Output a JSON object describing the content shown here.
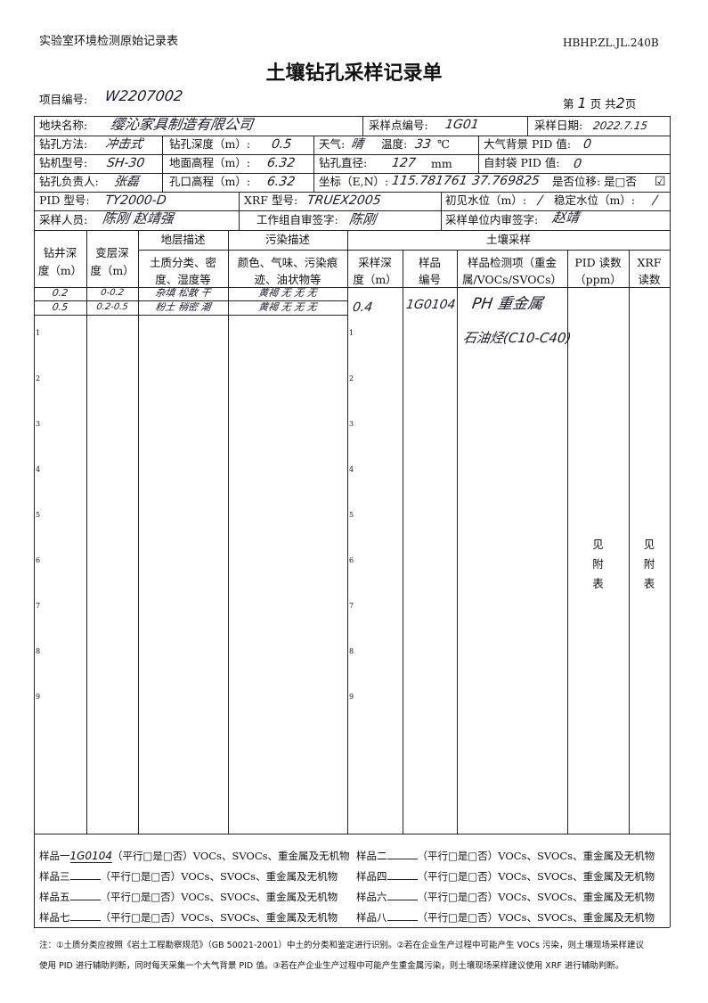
{
  "header": {
    "org": "实验室环境检测原始记录表",
    "code": "HBHP.ZL.JL.240B",
    "title": "土壤钻孔采样记录单",
    "project_label": "项目编号:",
    "project_value": "W2207002",
    "page_prefix": "第",
    "page_no": "1",
    "page_mid": "页 共",
    "page_total": "2",
    "page_suffix": "页"
  },
  "info": {
    "site_label": "地块名称:",
    "site_value": "缨沁家具制造有限公司",
    "point_label": "采样点编号:",
    "point_value": "1G01",
    "date_label": "采样日期:",
    "date_value": "2022.7.15",
    "method_label": "钻孔方法:",
    "method_value": "冲击式",
    "depth_label": "钻孔深度（m）:",
    "depth_value": "0.5",
    "weather_label": "天气:",
    "weather_value": "晴",
    "temp_label": "温度:",
    "temp_value": "33",
    "temp_unit": "℃",
    "bg_pid_label": "大气背景 PID 值:",
    "bg_pid_value": "0",
    "rig_label": "钻机型号:",
    "rig_value": "SH-30",
    "ground_label": "地面高程（m）:",
    "ground_value": "6.32",
    "diam_label": "钻孔直径:",
    "diam_value": "127",
    "diam_unit": "mm",
    "bag_pid_label": "自封袋 PID 值:",
    "bag_pid_value": "0",
    "leader_label": "钻孔负责人:",
    "leader_value": "张磊",
    "hole_label": "孔口高程（m）:",
    "hole_value": "6.32",
    "coord_label": "坐标（E,N）:",
    "coord_e": "115.781761",
    "coord_n": "37.769825",
    "shift_label": "是否位移: 是□否",
    "shift_check": "☑",
    "pid_model_label": "PID 型号:",
    "pid_model_value": "TY2000-D",
    "xrf_model_label": "XRF 型号:",
    "xrf_model_value": "TRUEX2005",
    "water_label": "初见水位（m）:",
    "water_value": "/",
    "stable_label": "稳定水位（m）:",
    "stable_value": "/",
    "sampler_label": "采样人员:",
    "sampler_value": "陈刚 赵靖强",
    "self_sign_label": "工作组自审签字:",
    "self_sign_value": "陈刚",
    "unit_sign_label": "采样单位内审签字:",
    "unit_sign_value": "赵靖"
  },
  "table": {
    "col1": [
      "钻井深",
      "度（m）"
    ],
    "col2": [
      "变层深",
      "度（m）"
    ],
    "strata": "地层描述",
    "strata_sub": [
      "土质分类、密",
      "度、湿度等"
    ],
    "pollution": "污染描述",
    "pollution_sub": [
      "颜色、气味、污染痕",
      "迹、油状物等"
    ],
    "soil": "土壤采样",
    "s_depth": [
      "采样深",
      "度（m）"
    ],
    "s_no": [
      "样品",
      "编号"
    ],
    "s_items": [
      "样品检测项（重金",
      "属/VOCs/SVOCs）"
    ],
    "s_pid": [
      "PID 读数",
      "（ppm）"
    ],
    "s_xrf": [
      "XRF",
      "读数"
    ],
    "rows": [
      {
        "depth": "0.2",
        "layer": "0-0.2",
        "strata": "杂填 松散 干",
        "pollution": "黄褐 无 无 无"
      },
      {
        "depth": "0.5",
        "layer": "0.2-0.5",
        "strata": "粉土 稍密 潮",
        "pollution": "黄褐 无 无 无"
      }
    ],
    "sample": {
      "depth": "0.4",
      "no": "1G0104",
      "items1": "PH 重金属",
      "items2": "石油烃(C10-C40)"
    },
    "see_attached": [
      "见",
      "附",
      "表"
    ],
    "depth_marks": [
      "1",
      "2",
      "3",
      "4",
      "5",
      "6",
      "7",
      "8",
      "9"
    ]
  },
  "samples": [
    {
      "label": "样品一",
      "value": "1G0104"
    },
    {
      "label": "样品二",
      "value": ""
    },
    {
      "label": "样品三",
      "value": ""
    },
    {
      "label": "样品四",
      "value": ""
    },
    {
      "label": "样品五",
      "value": ""
    },
    {
      "label": "样品六",
      "value": ""
    },
    {
      "label": "样品七",
      "value": ""
    },
    {
      "label": "样品八",
      "value": ""
    }
  ],
  "sample_suffix": "（平行□是□否）VOCs、SVOCs、重金属及无机物",
  "notes": [
    "注：①土质分类应按照《岩土工程勘察规范》（GB 50021-2001）中土的分类和鉴定进行识别。②若在企业生产过程中可能产生 VOCs 污染，则土壤现场采样建议",
    "使用 PID 进行辅助判断，同时每天采集一个大气背景 PID 值。③若在产企业生产过程中可能产生重金属污染，则土壤现场采样建议使用 XRF 进行辅助判断。"
  ]
}
